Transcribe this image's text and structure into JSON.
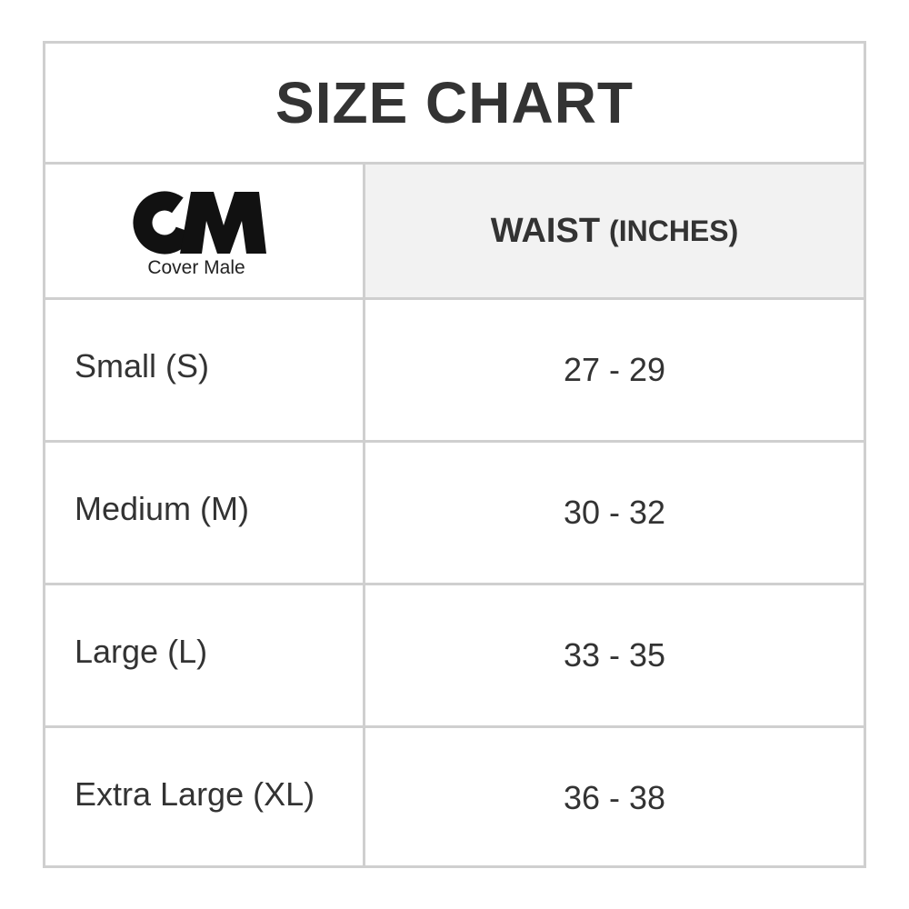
{
  "title": "SIZE CHART",
  "brand": {
    "logo_letters": "CM",
    "logo_name": "Cover Male"
  },
  "header": {
    "measure": "WAIST",
    "unit": "(INCHES)"
  },
  "rows": [
    {
      "size": "Small (S)",
      "waist": "27 - 29"
    },
    {
      "size": "Medium (M)",
      "waist": "30 - 32"
    },
    {
      "size": "Large (L)",
      "waist": "33 - 35"
    },
    {
      "size": "Extra Large (XL)",
      "waist": "36 - 38"
    }
  ]
}
